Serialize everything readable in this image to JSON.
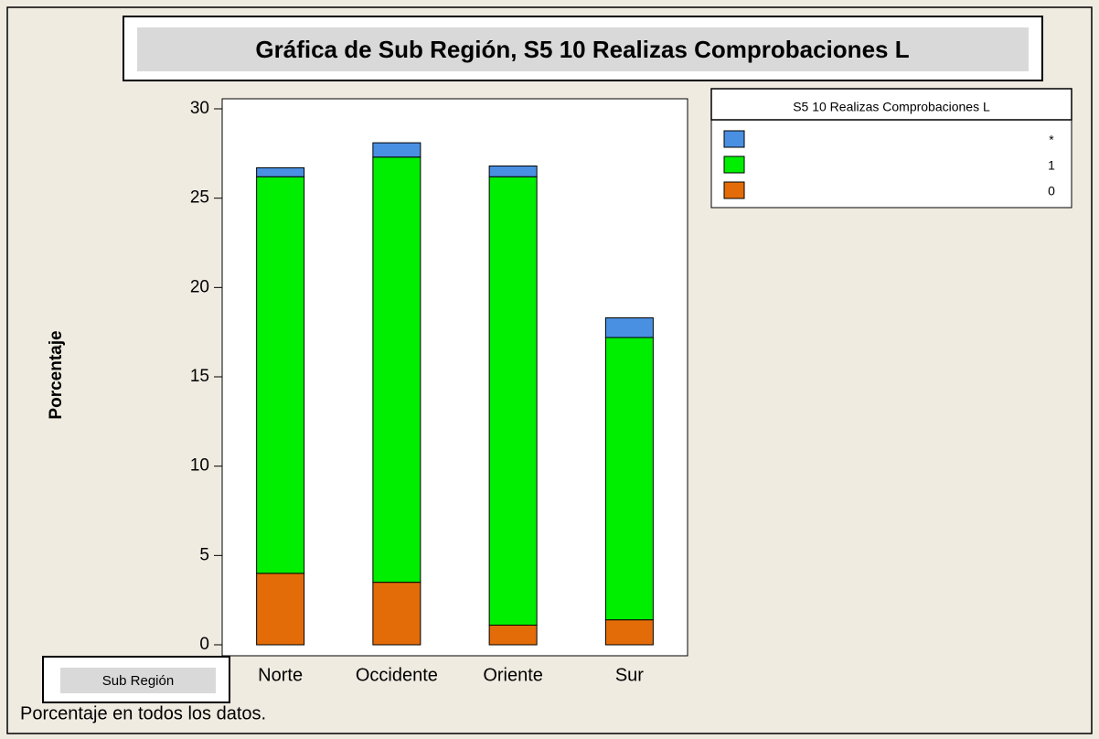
{
  "chart_data": {
    "type": "stacked_bar",
    "title": "Gráfica de Sub Región, S5  10 Realizas  Comprobaciones L",
    "x_label": "Sub Región",
    "y_label": "Porcentaje",
    "footnote": "Porcentaje en todos los datos.",
    "legend_title": "S5 10 Realizas Comprobaciones L",
    "legend_position": "top-right",
    "categories": [
      "Norte",
      "Occidente",
      "Oriente",
      "Sur"
    ],
    "series": [
      {
        "name": "0",
        "color": "#e36c09",
        "values": [
          4.0,
          3.5,
          1.1,
          1.4
        ]
      },
      {
        "name": "1",
        "color": "#00ee00",
        "values": [
          22.2,
          23.8,
          25.1,
          15.8
        ]
      },
      {
        "name": "*",
        "color": "#4a90e2",
        "values": [
          0.5,
          0.8,
          0.6,
          1.1
        ]
      }
    ],
    "ylim": [
      0,
      30
    ],
    "yticks": [
      0,
      5,
      10,
      15,
      20,
      25,
      30
    ]
  }
}
